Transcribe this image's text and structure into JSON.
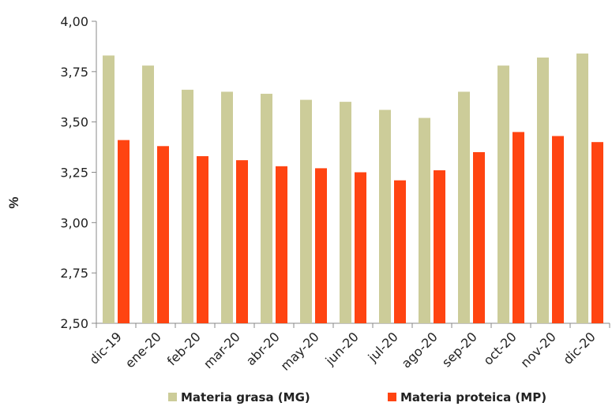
{
  "chart_data": {
    "type": "bar",
    "categories": [
      "dic-19",
      "ene-20",
      "feb-20",
      "mar-20",
      "abr-20",
      "may-20",
      "jun-20",
      "jul-20",
      "ago-20",
      "sep-20",
      "oct-20",
      "nov-20",
      "dic-20"
    ],
    "series": [
      {
        "name": "Materia grasa (MG)",
        "color": "#CCCC99",
        "values": [
          3.83,
          3.78,
          3.66,
          3.65,
          3.64,
          3.61,
          3.6,
          3.56,
          3.52,
          3.65,
          3.78,
          3.82,
          3.84
        ]
      },
      {
        "name": "Materia proteica (MP)",
        "color": "#FF4411",
        "values": [
          3.41,
          3.38,
          3.33,
          3.31,
          3.28,
          3.27,
          3.25,
          3.21,
          3.26,
          3.35,
          3.45,
          3.43,
          3.4
        ]
      }
    ],
    "ylabel": "%",
    "ylim": [
      2.5,
      4.0
    ],
    "yticks": [
      "2,50",
      "2,75",
      "3,00",
      "3,25",
      "3,50",
      "3,75",
      "4,00"
    ],
    "grid": false,
    "legend_position": "bottom"
  }
}
